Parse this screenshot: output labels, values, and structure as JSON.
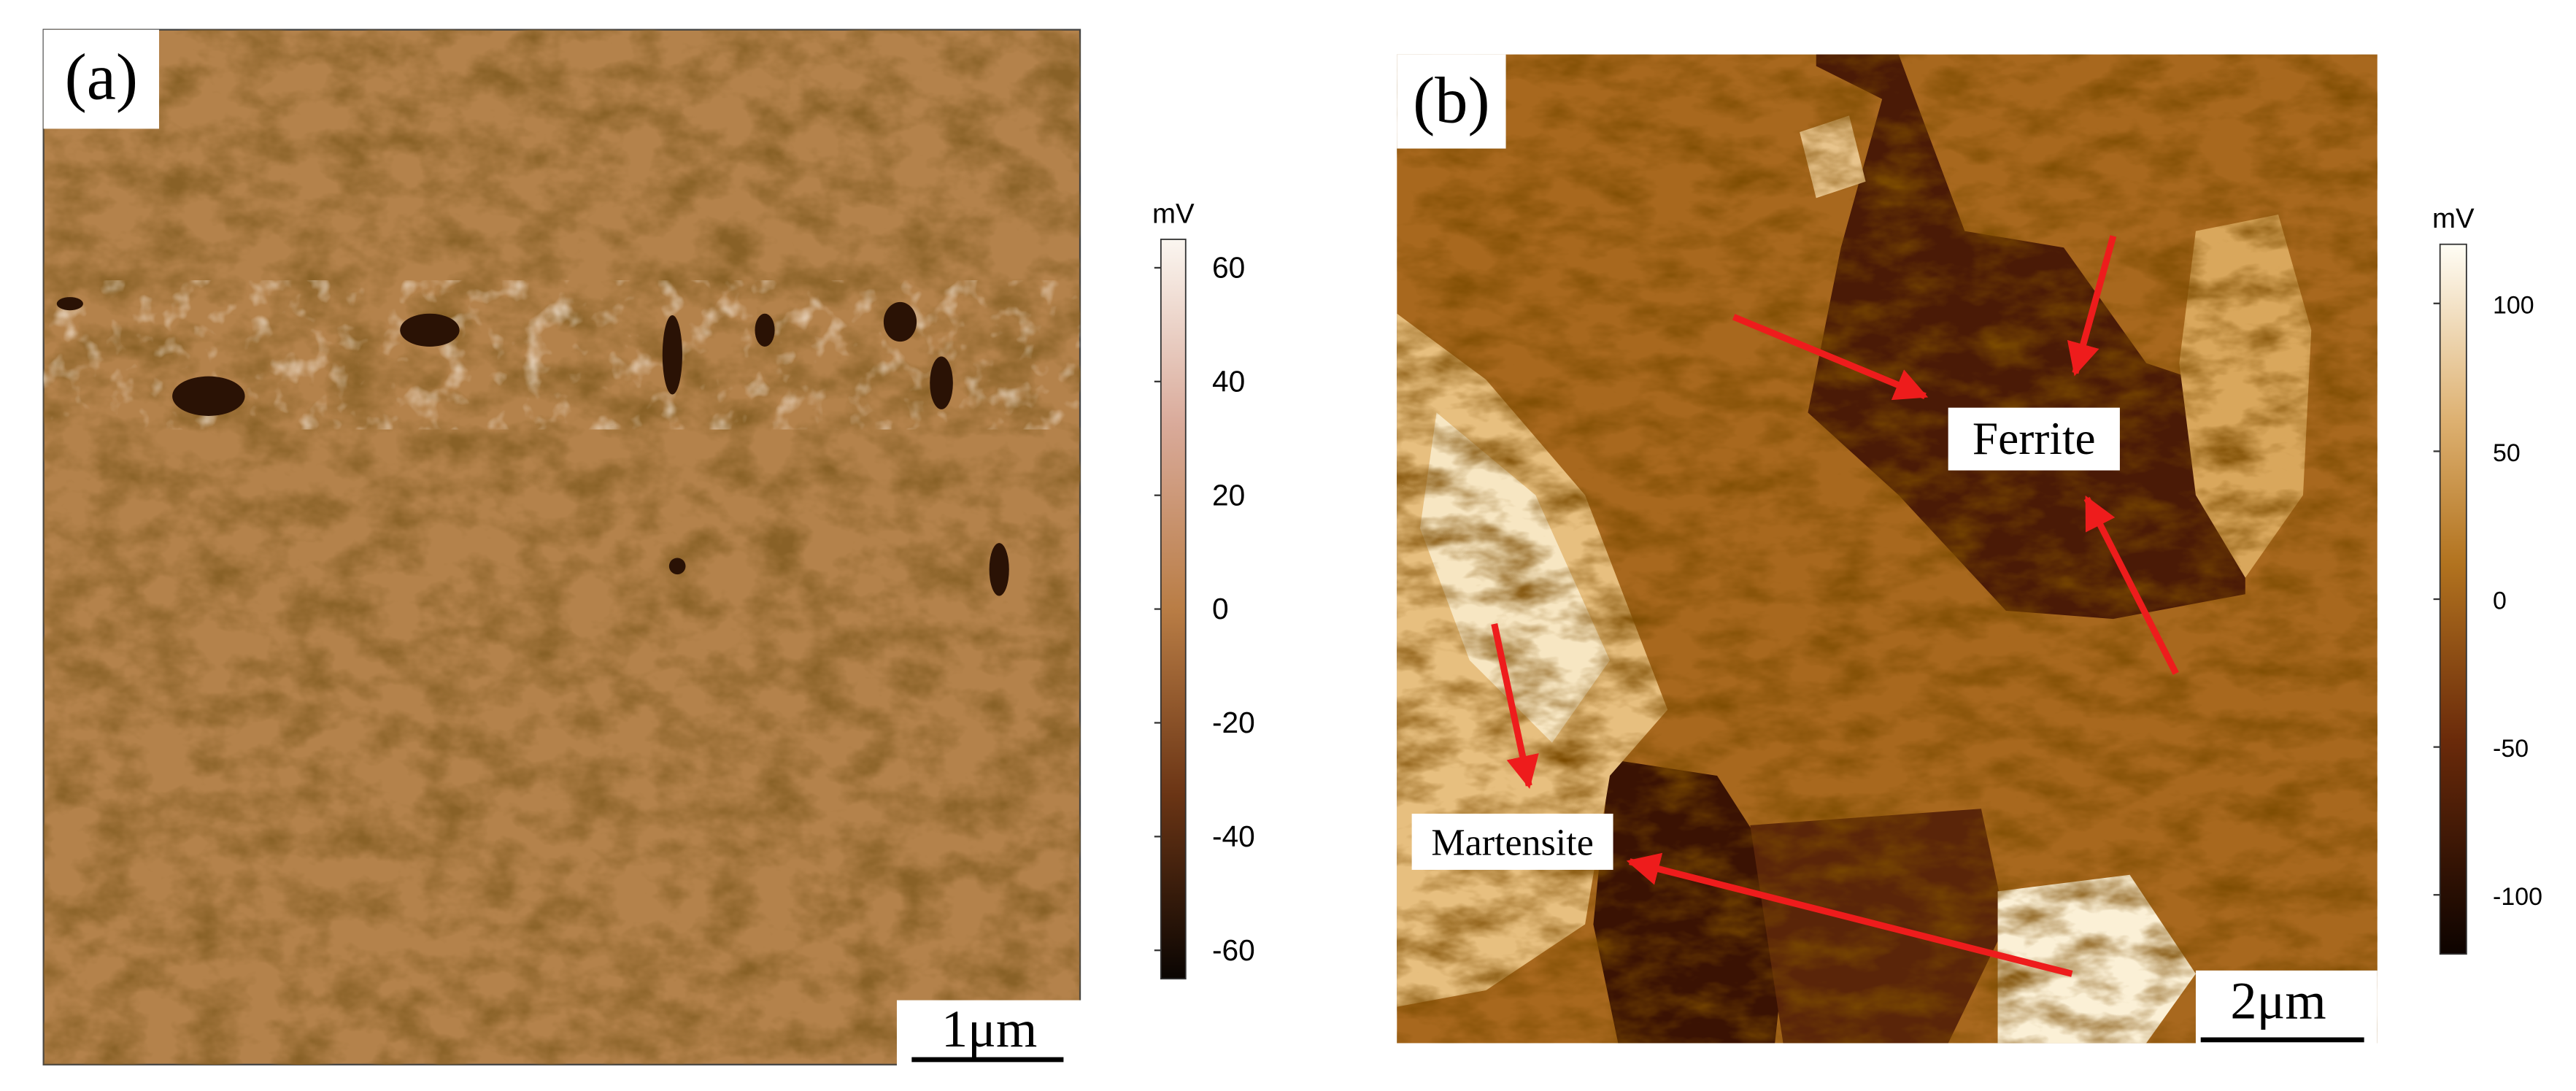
{
  "panels": [
    {
      "label": "(a)",
      "colorbar": {
        "unit": "mV",
        "lim": [
          -65,
          65
        ],
        "ticks": [
          60,
          40,
          20,
          0,
          -20,
          -40,
          -60
        ]
      },
      "scale_bar": "1μm"
    },
    {
      "label": "(b)",
      "colorbar": {
        "unit": "mV",
        "lim": [
          -120,
          120
        ],
        "ticks": [
          100,
          50,
          0,
          -50,
          -100
        ]
      },
      "scale_bar": "2μm",
      "annotations": [
        "Ferrite",
        "Martensite"
      ]
    }
  ]
}
